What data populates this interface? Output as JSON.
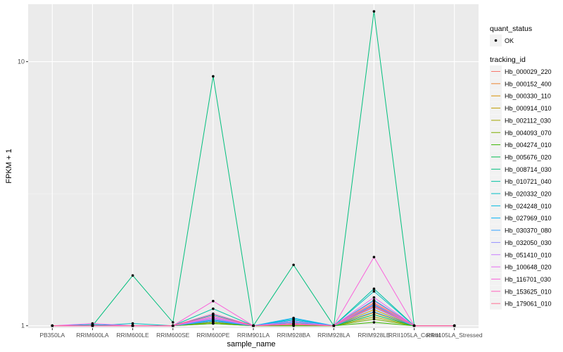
{
  "chart_data": {
    "type": "line",
    "title": "",
    "xlabel": "sample_name",
    "ylabel": "FPKM + 1",
    "y_scale": "log10",
    "ylim": [
      0.98,
      16.5
    ],
    "y_ticks": [
      1,
      10
    ],
    "grid": true,
    "legend_position": "right",
    "categories": [
      "PB350LA",
      "RRIM600LA",
      "RRIM600LE",
      "RRIM600SE",
      "RRIM600PE",
      "RRIM901LA",
      "RRIM928BA",
      "RRIM928LA",
      "RRIM928LE",
      "RRII105LA_Control",
      "RRII105LA_Stressed"
    ],
    "shape_legend": {
      "title": "quant_status",
      "items": [
        "OK"
      ]
    },
    "color_legend_title": "tracking_id",
    "series": [
      {
        "name": "Hb_000029_220",
        "color": "#F8766D",
        "values": [
          1,
          1,
          1,
          1,
          1.04,
          1,
          1.02,
          1,
          1.18,
          1,
          1
        ]
      },
      {
        "name": "Hb_000152_400",
        "color": "#EA8331",
        "values": [
          1,
          1,
          1,
          1,
          1.07,
          1,
          1.03,
          1,
          1.22,
          1,
          1
        ]
      },
      {
        "name": "Hb_000330_110",
        "color": "#D89000",
        "values": [
          1,
          1,
          1,
          1,
          1.05,
          1,
          1.02,
          1,
          1.12,
          1,
          1
        ]
      },
      {
        "name": "Hb_000914_010",
        "color": "#C09B00",
        "values": [
          1,
          1.01,
          1,
          1,
          1.03,
          1,
          1.01,
          1,
          1.15,
          1,
          1
        ]
      },
      {
        "name": "Hb_002112_030",
        "color": "#A3A500",
        "values": [
          1,
          1,
          1,
          1,
          1.02,
          1,
          1,
          1,
          1.08,
          1,
          1
        ]
      },
      {
        "name": "Hb_004093_070",
        "color": "#7CAE00",
        "values": [
          1,
          1,
          1,
          1,
          1.03,
          1,
          1.01,
          1,
          1.06,
          1,
          1
        ]
      },
      {
        "name": "Hb_004274_010",
        "color": "#39B600",
        "values": [
          1,
          1,
          1,
          1,
          1.02,
          1,
          1,
          1,
          1.03,
          1,
          1
        ]
      },
      {
        "name": "Hb_005676_020",
        "color": "#00BB4E",
        "values": [
          1,
          1,
          1,
          1,
          1.04,
          1,
          1.01,
          1,
          1.1,
          1,
          1
        ]
      },
      {
        "name": "Hb_008714_030",
        "color": "#00BF7D",
        "values": [
          1,
          1,
          1.55,
          1.03,
          8.8,
          1,
          1.7,
          1,
          15.5,
          1,
          1
        ]
      },
      {
        "name": "Hb_010721_040",
        "color": "#00C1A3",
        "values": [
          1,
          1,
          1,
          1,
          1.16,
          1,
          1.04,
          1,
          1.38,
          1,
          1
        ]
      },
      {
        "name": "Hb_020332_020",
        "color": "#00BFC4",
        "values": [
          1,
          1,
          1.02,
          1,
          1.1,
          1,
          1.06,
          1,
          1.35,
          1,
          1
        ]
      },
      {
        "name": "Hb_024248_010",
        "color": "#00BAE0",
        "values": [
          1,
          1.01,
          1,
          1,
          1.06,
          1,
          1.05,
          1,
          1.25,
          1,
          1
        ]
      },
      {
        "name": "Hb_027969_010",
        "color": "#00B0F6",
        "values": [
          1,
          1,
          1,
          1,
          1.05,
          1,
          1.07,
          1,
          1.2,
          1,
          1
        ]
      },
      {
        "name": "Hb_030370_080",
        "color": "#35A2FF",
        "values": [
          1,
          1,
          1,
          1,
          1.04,
          1,
          1.03,
          1,
          1.13,
          1,
          1
        ]
      },
      {
        "name": "Hb_032050_030",
        "color": "#9590FF",
        "values": [
          1,
          1,
          1,
          1,
          1.06,
          1,
          1.02,
          1,
          1.17,
          1,
          1
        ]
      },
      {
        "name": "Hb_051410_010",
        "color": "#C77CFF",
        "values": [
          1,
          1,
          1,
          1,
          1.08,
          1,
          1.04,
          1,
          1.21,
          1,
          1
        ]
      },
      {
        "name": "Hb_100648_020",
        "color": "#E76BF3",
        "values": [
          1,
          1.02,
          1,
          1,
          1.07,
          1,
          1.02,
          1,
          1.28,
          1,
          1
        ]
      },
      {
        "name": "Hb_116701_030",
        "color": "#FA62DB",
        "values": [
          1,
          1,
          1,
          1,
          1.24,
          1,
          1.01,
          1,
          1.82,
          1,
          1
        ]
      },
      {
        "name": "Hb_153625_010",
        "color": "#FF62BC",
        "values": [
          1,
          1,
          1,
          1,
          1.11,
          1,
          1.02,
          1,
          1.24,
          1,
          1
        ]
      },
      {
        "name": "Hb_179061_010",
        "color": "#FF6C91",
        "values": [
          1,
          1,
          1,
          1,
          1.09,
          1,
          1.01,
          1,
          1.19,
          1,
          1
        ]
      }
    ]
  }
}
